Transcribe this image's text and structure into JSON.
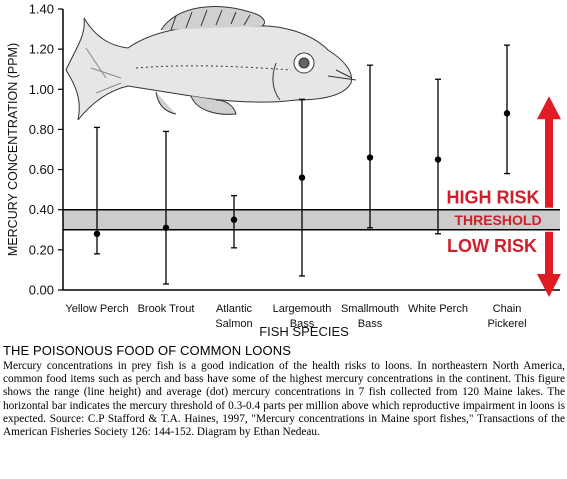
{
  "colors": {
    "axis": "#000000",
    "threshold_band": "#cccccc",
    "risk_label": "#d11f2a",
    "arrow": "#e01b24",
    "text": "#111111"
  },
  "chart_data": {
    "type": "scatter",
    "subtype": "range-with-average",
    "xlabel": "FISH SPECIES",
    "ylabel": "MERCURY CONCENTRATION (PPM)",
    "ylim": [
      0,
      1.4
    ],
    "yticks": [
      "0.00",
      "0.20",
      "0.40",
      "0.60",
      "0.80",
      "1.00",
      "1.20",
      "1.40"
    ],
    "grid": false,
    "categories": [
      [
        "Yellow Perch"
      ],
      [
        "Brook Trout"
      ],
      [
        "Atlantic",
        "Salmon"
      ],
      [
        "Largemouth",
        "Bass"
      ],
      [
        "Smallmouth",
        "Bass"
      ],
      [
        "White Perch"
      ],
      [
        "Chain",
        "Pickerel"
      ]
    ],
    "series": [
      {
        "values": [
          {
            "min": 0.18,
            "max": 0.81,
            "avg": 0.28
          },
          {
            "min": 0.03,
            "max": 0.79,
            "avg": 0.31
          },
          {
            "min": 0.21,
            "max": 0.47,
            "avg": 0.35
          },
          {
            "min": 0.07,
            "max": 0.95,
            "avg": 0.56
          },
          {
            "min": 0.31,
            "max": 1.12,
            "avg": 0.66
          },
          {
            "min": 0.28,
            "max": 1.05,
            "avg": 0.65
          },
          {
            "min": 0.58,
            "max": 1.22,
            "avg": 0.88
          }
        ]
      }
    ],
    "threshold": {
      "low": 0.3,
      "high": 0.4,
      "label": "THRESHOLD"
    },
    "annotations": {
      "high": "HIGH RISK",
      "low": "LOW RISK"
    },
    "decoration": "fish-illustration"
  },
  "caption": {
    "title": "THE POISONOUS FOOD OF COMMON LOONS",
    "body": "Mercury concentrations in prey fish is a good indication of the health risks to loons.  In northeastern North America, common food items such as perch and bass have some of the highest mercury concentrations in the continent.  This figure shows the range (line height) and average (dot) mercury concentrations in 7 fish collected from 120 Maine lakes. The horizontal bar indicates the mercury threshold of 0.3-0.4 parts per million above which reproductive impairment in loons is expected.  Source: C.P Stafford & T.A. Haines, 1997, \"Mercury concentrations in Maine sport fishes,\" Transactions of the American Fisheries Society 126: 144-152.  Diagram by Ethan Nedeau."
  }
}
